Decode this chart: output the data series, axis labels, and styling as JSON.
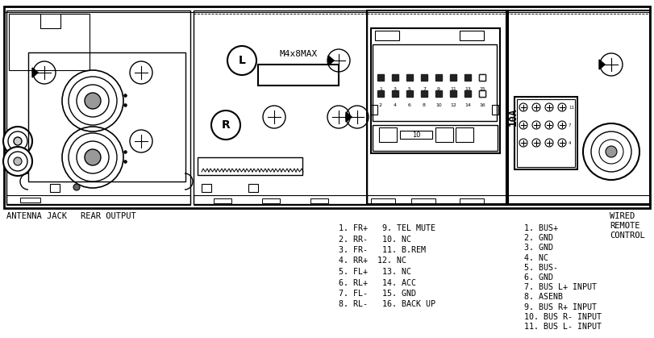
{
  "bg_color": "#ffffff",
  "c": "#000000",
  "label_antenna": "ANTENNA JACK",
  "label_rear": "REAR OUTPUT",
  "label_m4x8max": "M4x8MAX",
  "label_10a": "10A",
  "col1_items": [
    "1. FR+   9. TEL MUTE",
    "2. RR-   10. NC",
    "3. FR-   11. B.REM",
    "4. RR+  12. NC",
    "5. FL+   13. NC",
    "6. RL+   14. ACC",
    "7. FL-   15. GND",
    "8. RL-   16. BACK UP"
  ],
  "col2_items": [
    "1. BUS+",
    "2. GND",
    "3. GND",
    "4. NC",
    "5. BUS-",
    "6. GND",
    "7. BUS L+ INPUT",
    "8. ASENB",
    "9. BUS R+ INPUT",
    "10. BUS R- INPUT",
    "11. BUS L- INPUT"
  ]
}
